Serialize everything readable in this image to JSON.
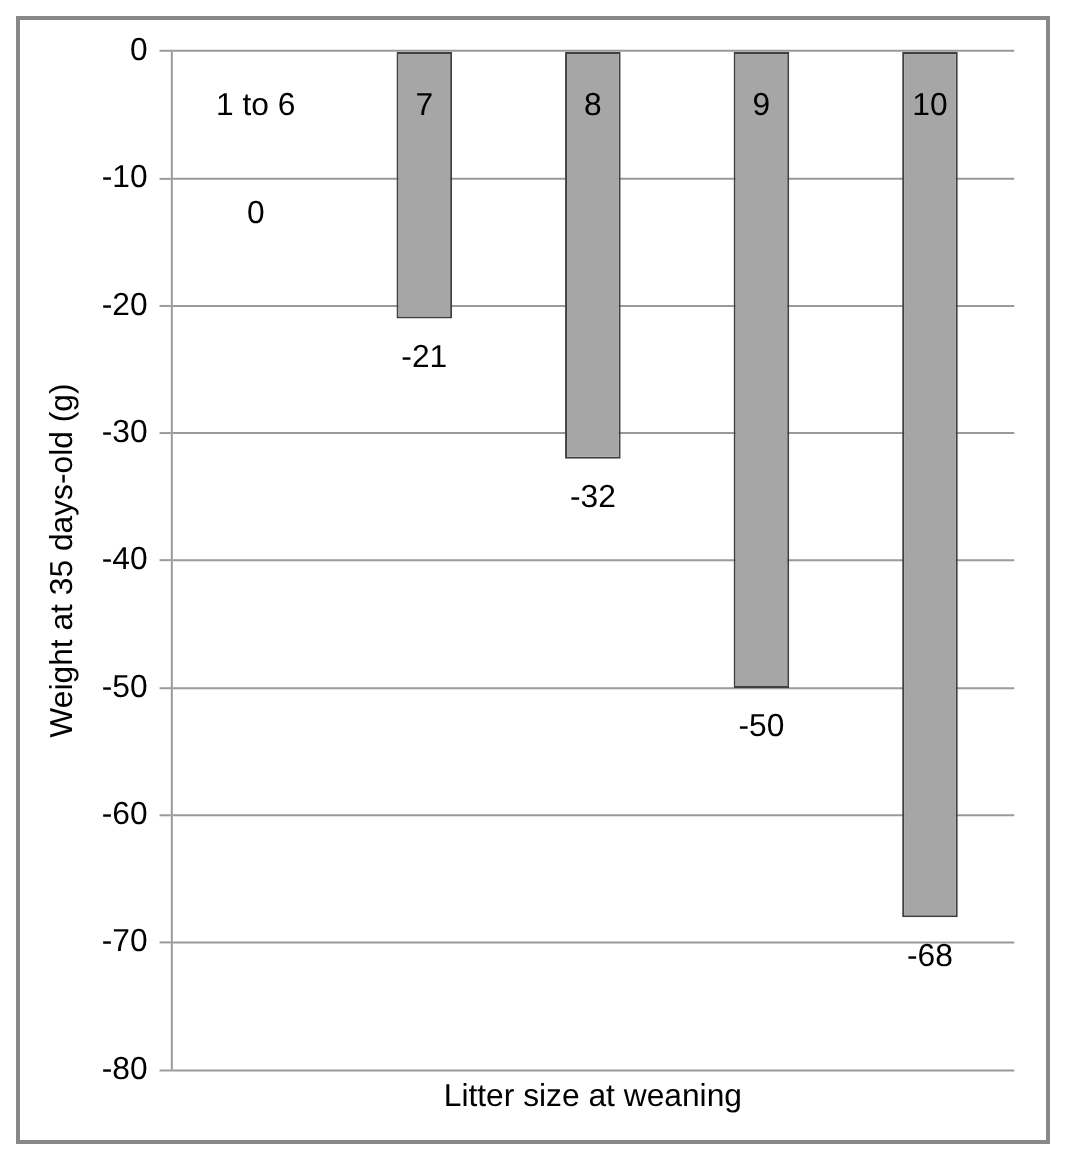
{
  "chart_data": {
    "type": "bar",
    "categories": [
      "1 to 6",
      "7",
      "8",
      "9",
      "10"
    ],
    "values": [
      0,
      -21,
      -32,
      -50,
      -68
    ],
    "color": "#a6a6a6",
    "value_labels": [
      null,
      "-21",
      "-32",
      "-50",
      "-68"
    ],
    "annotations": [
      "0"
    ],
    "ylim": [
      -80,
      0
    ],
    "yticks": [
      -80,
      -70,
      -60,
      -50,
      -40,
      -30,
      -20,
      -10,
      0
    ],
    "grid": "y",
    "xlabel": "Litter size at weaning",
    "ylabel": "Weight at 35 days-old (g)"
  }
}
